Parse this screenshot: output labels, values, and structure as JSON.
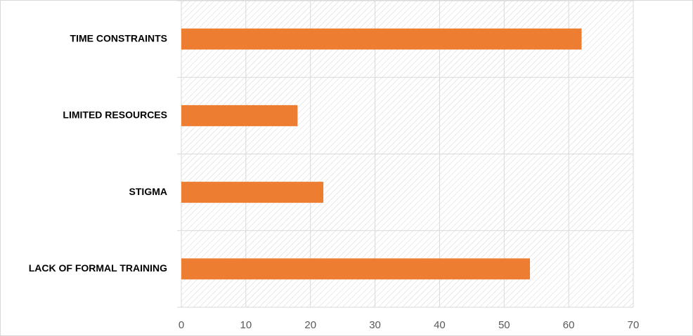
{
  "chart_data": {
    "type": "bar",
    "orientation": "horizontal",
    "categories": [
      "TIME CONSTRAINTS",
      "LIMITED RESOURCES",
      "STIGMA",
      "LACK OF FORMAL TRAINING"
    ],
    "values": [
      62,
      18,
      22,
      54
    ],
    "color": "#ed7d31",
    "xlim": [
      0,
      70
    ],
    "xticks": [
      0,
      10,
      20,
      30,
      40,
      50,
      60,
      70
    ],
    "grid": true
  }
}
